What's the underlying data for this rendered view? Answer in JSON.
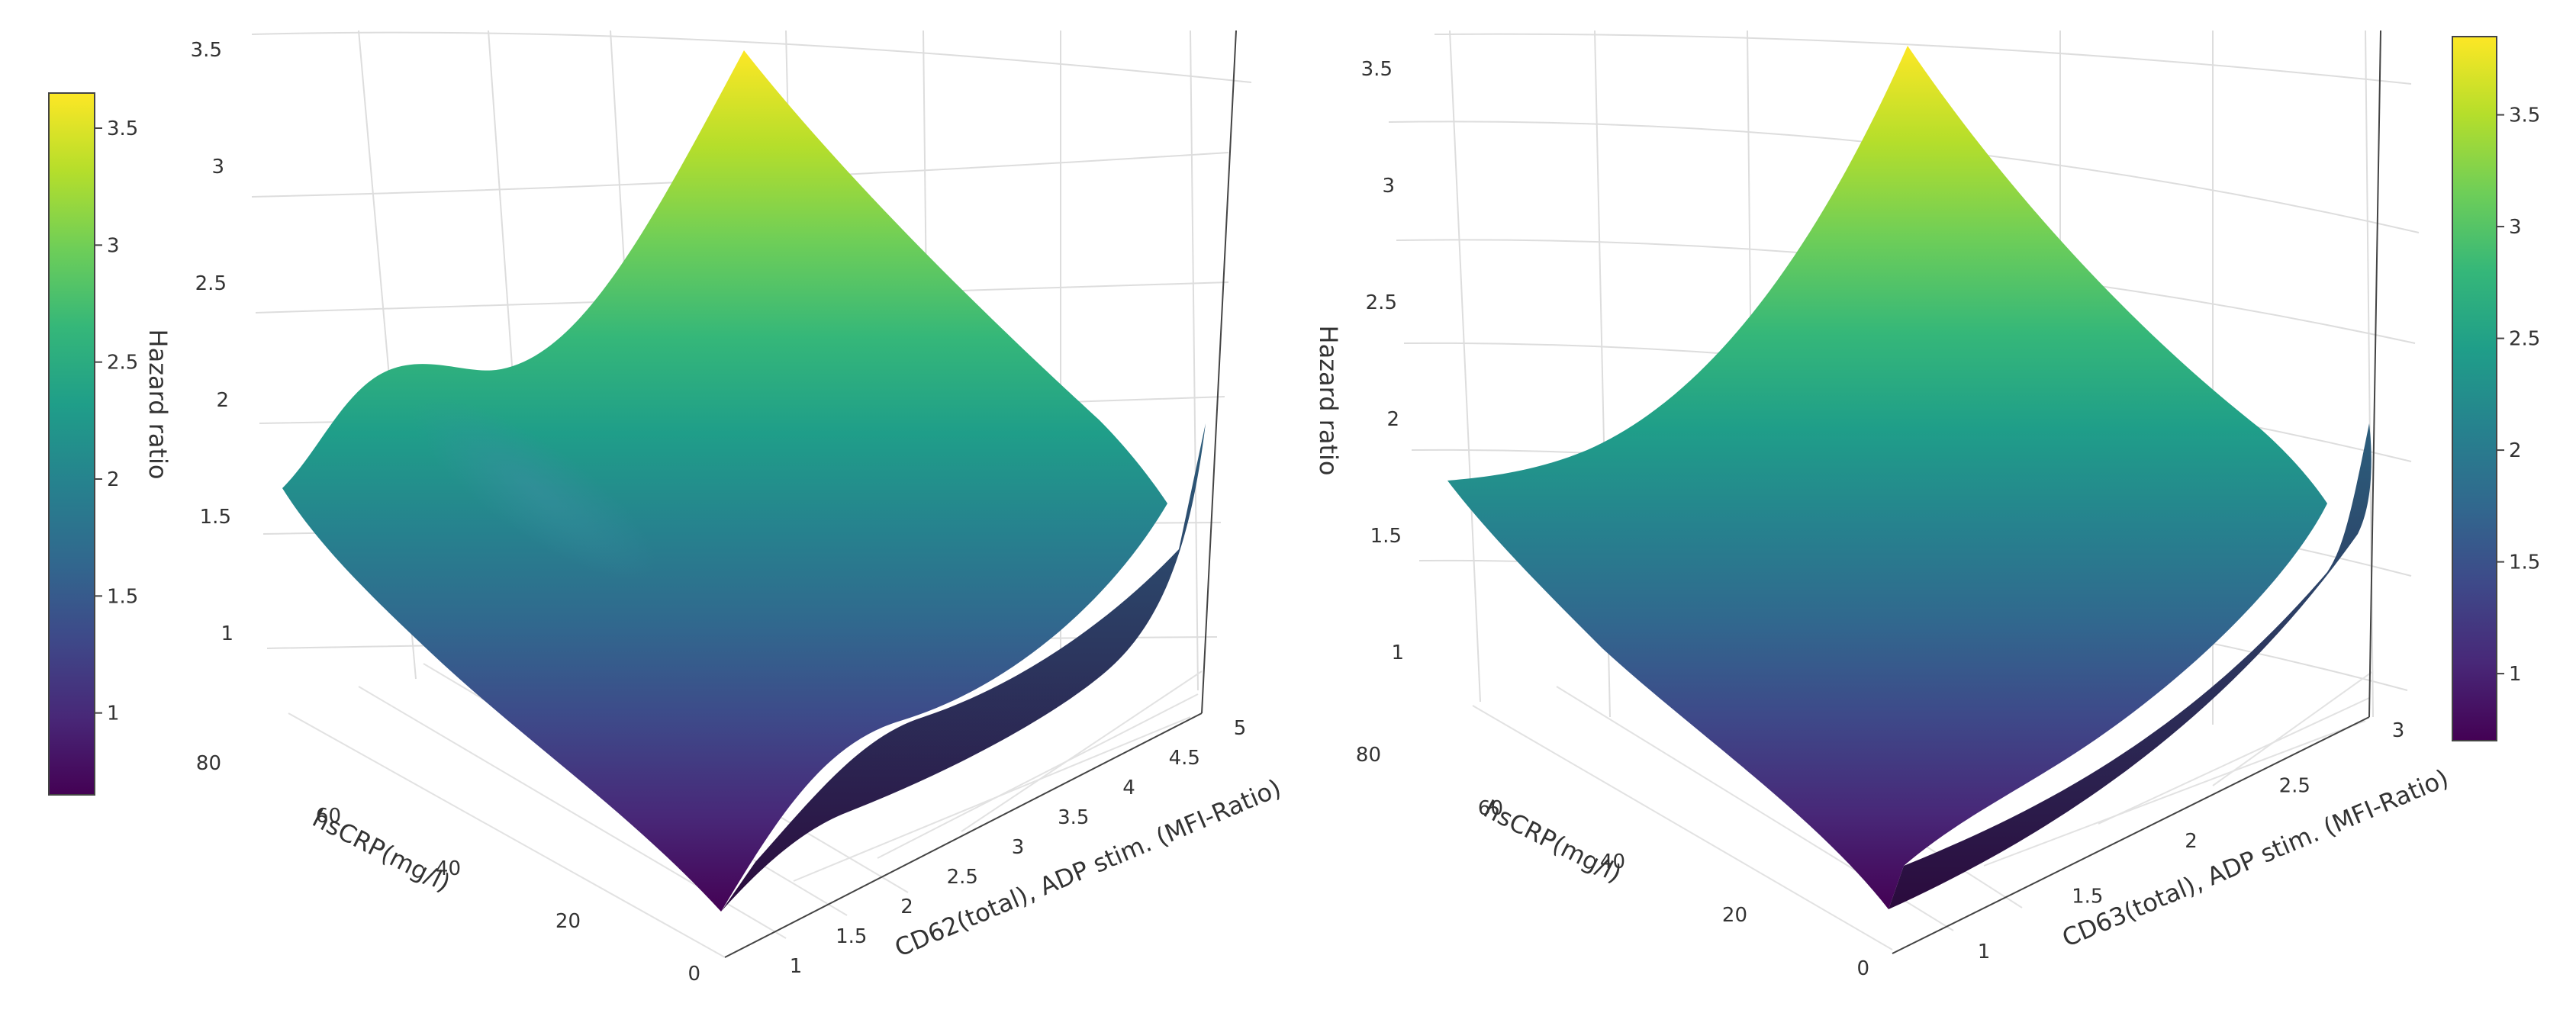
{
  "colorscale": [
    "#440154",
    "#482878",
    "#3e4989",
    "#31688e",
    "#26828e",
    "#1f9e89",
    "#35b779",
    "#6ece58",
    "#b5de2b",
    "#fde725"
  ],
  "charts": [
    {
      "z_axis_title": "Hazard ratio",
      "y_axis_title": "hsCRP(mg/l)",
      "x_axis_title": "CD62(total), ADP stim. (MFI-Ratio)",
      "z_ticks": [
        "1",
        "1.5",
        "2",
        "2.5",
        "3",
        "3.5"
      ],
      "y_ticks": [
        "0",
        "20",
        "40",
        "60",
        "80"
      ],
      "x_ticks": [
        "1",
        "1.5",
        "2",
        "2.5",
        "3",
        "3.5",
        "4",
        "4.5",
        "5"
      ],
      "colorbar_ticks": [
        "1",
        "1.5",
        "2",
        "2.5",
        "3",
        "3.5"
      ]
    },
    {
      "z_axis_title": "Hazard ratio",
      "y_axis_title": "hsCRP(mg/l)",
      "x_axis_title": "CD63(total), ADP stim. (MFI-Ratio)",
      "z_ticks": [
        "1",
        "1.5",
        "2",
        "2.5",
        "3",
        "3.5"
      ],
      "y_ticks": [
        "0",
        "20",
        "40",
        "60",
        "80"
      ],
      "x_ticks": [
        "1",
        "1.5",
        "2",
        "2.5",
        "3"
      ],
      "colorbar_ticks": [
        "1",
        "1.5",
        "2",
        "2.5",
        "3",
        "3.5"
      ]
    }
  ],
  "chart_data": [
    {
      "type": "surface",
      "x_label": "CD62(total), ADP stim. (MFI-Ratio)",
      "y_label": "hsCRP(mg/l)",
      "z_label": "Hazard ratio",
      "x_range": [
        0.8,
        5
      ],
      "y_range": [
        0,
        90
      ],
      "z_range": [
        0.65,
        3.6
      ],
      "colorbar_range": [
        0.65,
        3.65
      ],
      "corners": [
        {
          "x": 1,
          "y": 0,
          "z": 0.65
        },
        {
          "x": 5,
          "y": 0,
          "z": 1.9
        },
        {
          "x": 1,
          "y": 90,
          "z": 1.7
        },
        {
          "x": 5,
          "y": 90,
          "z": 3.6
        }
      ],
      "features": [
        "local bump near x=1.5, y=75, z≈2.2",
        "dip near x=2, y=10"
      ]
    },
    {
      "type": "surface",
      "x_label": "CD63(total), ADP stim. (MFI-Ratio)",
      "y_label": "hsCRP(mg/l)",
      "z_label": "Hazard ratio",
      "x_range": [
        0.8,
        3
      ],
      "y_range": [
        0,
        90
      ],
      "z_range": [
        0.7,
        3.8
      ],
      "colorbar_range": [
        0.7,
        3.85
      ],
      "corners": [
        {
          "x": 1,
          "y": 0,
          "z": 0.7
        },
        {
          "x": 3,
          "y": 0,
          "z": 2.05
        },
        {
          "x": 1,
          "y": 90,
          "z": 1.85
        },
        {
          "x": 3,
          "y": 90,
          "z": 3.8
        }
      ],
      "features": [
        "smooth convex surface"
      ]
    }
  ]
}
